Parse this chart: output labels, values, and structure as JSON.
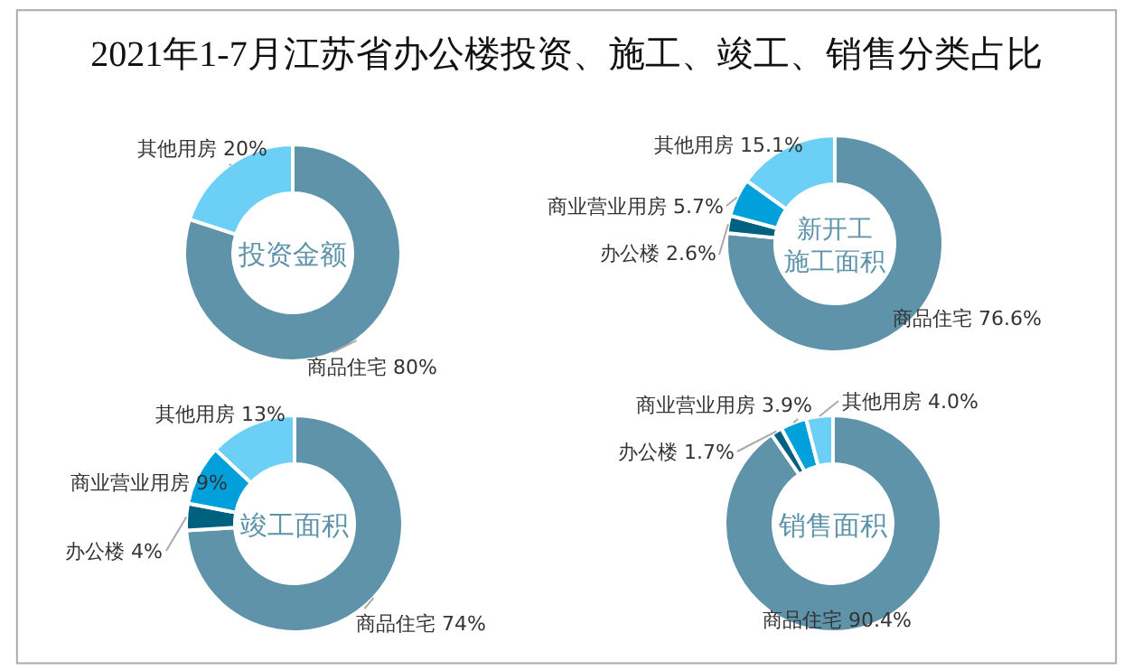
{
  "chart_data": [
    {
      "type": "donut",
      "title": "2021年1-7月江苏省办公楼投资、施工、竣工、销售分类占比",
      "subtitle": "投资金额",
      "categories": [
        "商品住宅",
        "其他用房"
      ],
      "values": [
        80,
        20
      ],
      "value_labels": [
        "80%",
        "20%"
      ],
      "colors": [
        "#5e93aa",
        "#6ccff6"
      ]
    },
    {
      "type": "donut",
      "subtitle": "新开工施工面积",
      "categories": [
        "商品住宅",
        "办公楼",
        "商业营业用房",
        "其他用房"
      ],
      "values": [
        76.6,
        2.6,
        5.7,
        15.1
      ],
      "value_labels": [
        "76.6%",
        "2.6%",
        "5.7%",
        "15.1%"
      ],
      "colors": [
        "#5e93aa",
        "#006080",
        "#00a0db",
        "#6ccff6"
      ]
    },
    {
      "type": "donut",
      "subtitle": "竣工面积",
      "categories": [
        "商品住宅",
        "办公楼",
        "商业营业用房",
        "其他用房"
      ],
      "values": [
        74,
        4,
        9,
        13
      ],
      "value_labels": [
        "74%",
        "4%",
        "9%",
        "13%"
      ],
      "colors": [
        "#5e93aa",
        "#006080",
        "#00a0db",
        "#6ccff6"
      ]
    },
    {
      "type": "donut",
      "subtitle": "销售面积",
      "categories": [
        "商品住宅",
        "办公楼",
        "商业营业用房",
        "其他用房"
      ],
      "values": [
        90.4,
        1.7,
        3.9,
        4.0
      ],
      "value_labels": [
        "90.4%",
        "1.7%",
        "3.9%",
        "4.0%"
      ],
      "colors": [
        "#5e93aa",
        "#006080",
        "#00a0db",
        "#6ccff6"
      ]
    }
  ]
}
